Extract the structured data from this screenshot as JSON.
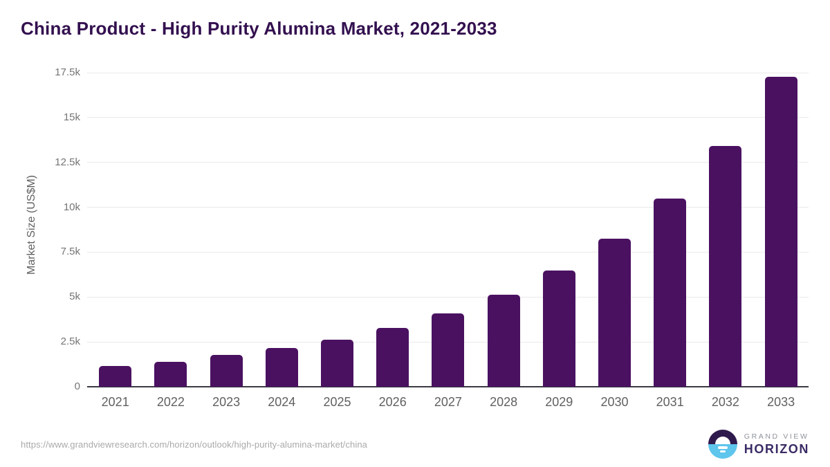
{
  "header": {
    "title": "China Product - High Purity Alumina Market, 2021-2033"
  },
  "chart_data": {
    "type": "bar",
    "title": "China Product - High Purity Alumina Market, 2021-2033",
    "categories": [
      "2021",
      "2022",
      "2023",
      "2024",
      "2025",
      "2026",
      "2027",
      "2028",
      "2029",
      "2030",
      "2031",
      "2032",
      "2033"
    ],
    "values": [
      1150,
      1400,
      1760,
      2150,
      2620,
      3280,
      4070,
      5130,
      6480,
      8250,
      10500,
      13420,
      17270
    ],
    "unit": "US$M",
    "xlabel": "",
    "ylabel": "Market Size (US$M)",
    "ylim": [
      0,
      17500
    ],
    "ytick_values": [
      0,
      2500,
      5000,
      7500,
      10000,
      12500,
      15000,
      17500
    ],
    "ytick_labels": [
      "0",
      "2.5k",
      "5k",
      "7.5k",
      "10k",
      "12.5k",
      "15k",
      "17.5k"
    ],
    "grid": true,
    "legend": false,
    "bar_color": "#4A1161"
  },
  "footer": {
    "source_url": "https://www.grandviewresearch.com/horizon/outlook/high-purity-alumina-market/china",
    "logo": {
      "line1": "GRAND VIEW",
      "line2": "HORIZON"
    }
  },
  "colors": {
    "background": "#FFFFFF",
    "title": "#33104F",
    "bar": "#4A1161",
    "gridline": "#E9E9E9",
    "axis_line": "#3A3A42",
    "ytick_label": "#757575",
    "xtick_label": "#606060",
    "axis_title": "#616161",
    "url_text": "#A9A9A9",
    "logo_gray": "#8D929A",
    "logo_purple": "#3A2A64",
    "logo_icon_top": "#2E1A4C",
    "logo_icon_bottom": "#5EC5EC"
  }
}
